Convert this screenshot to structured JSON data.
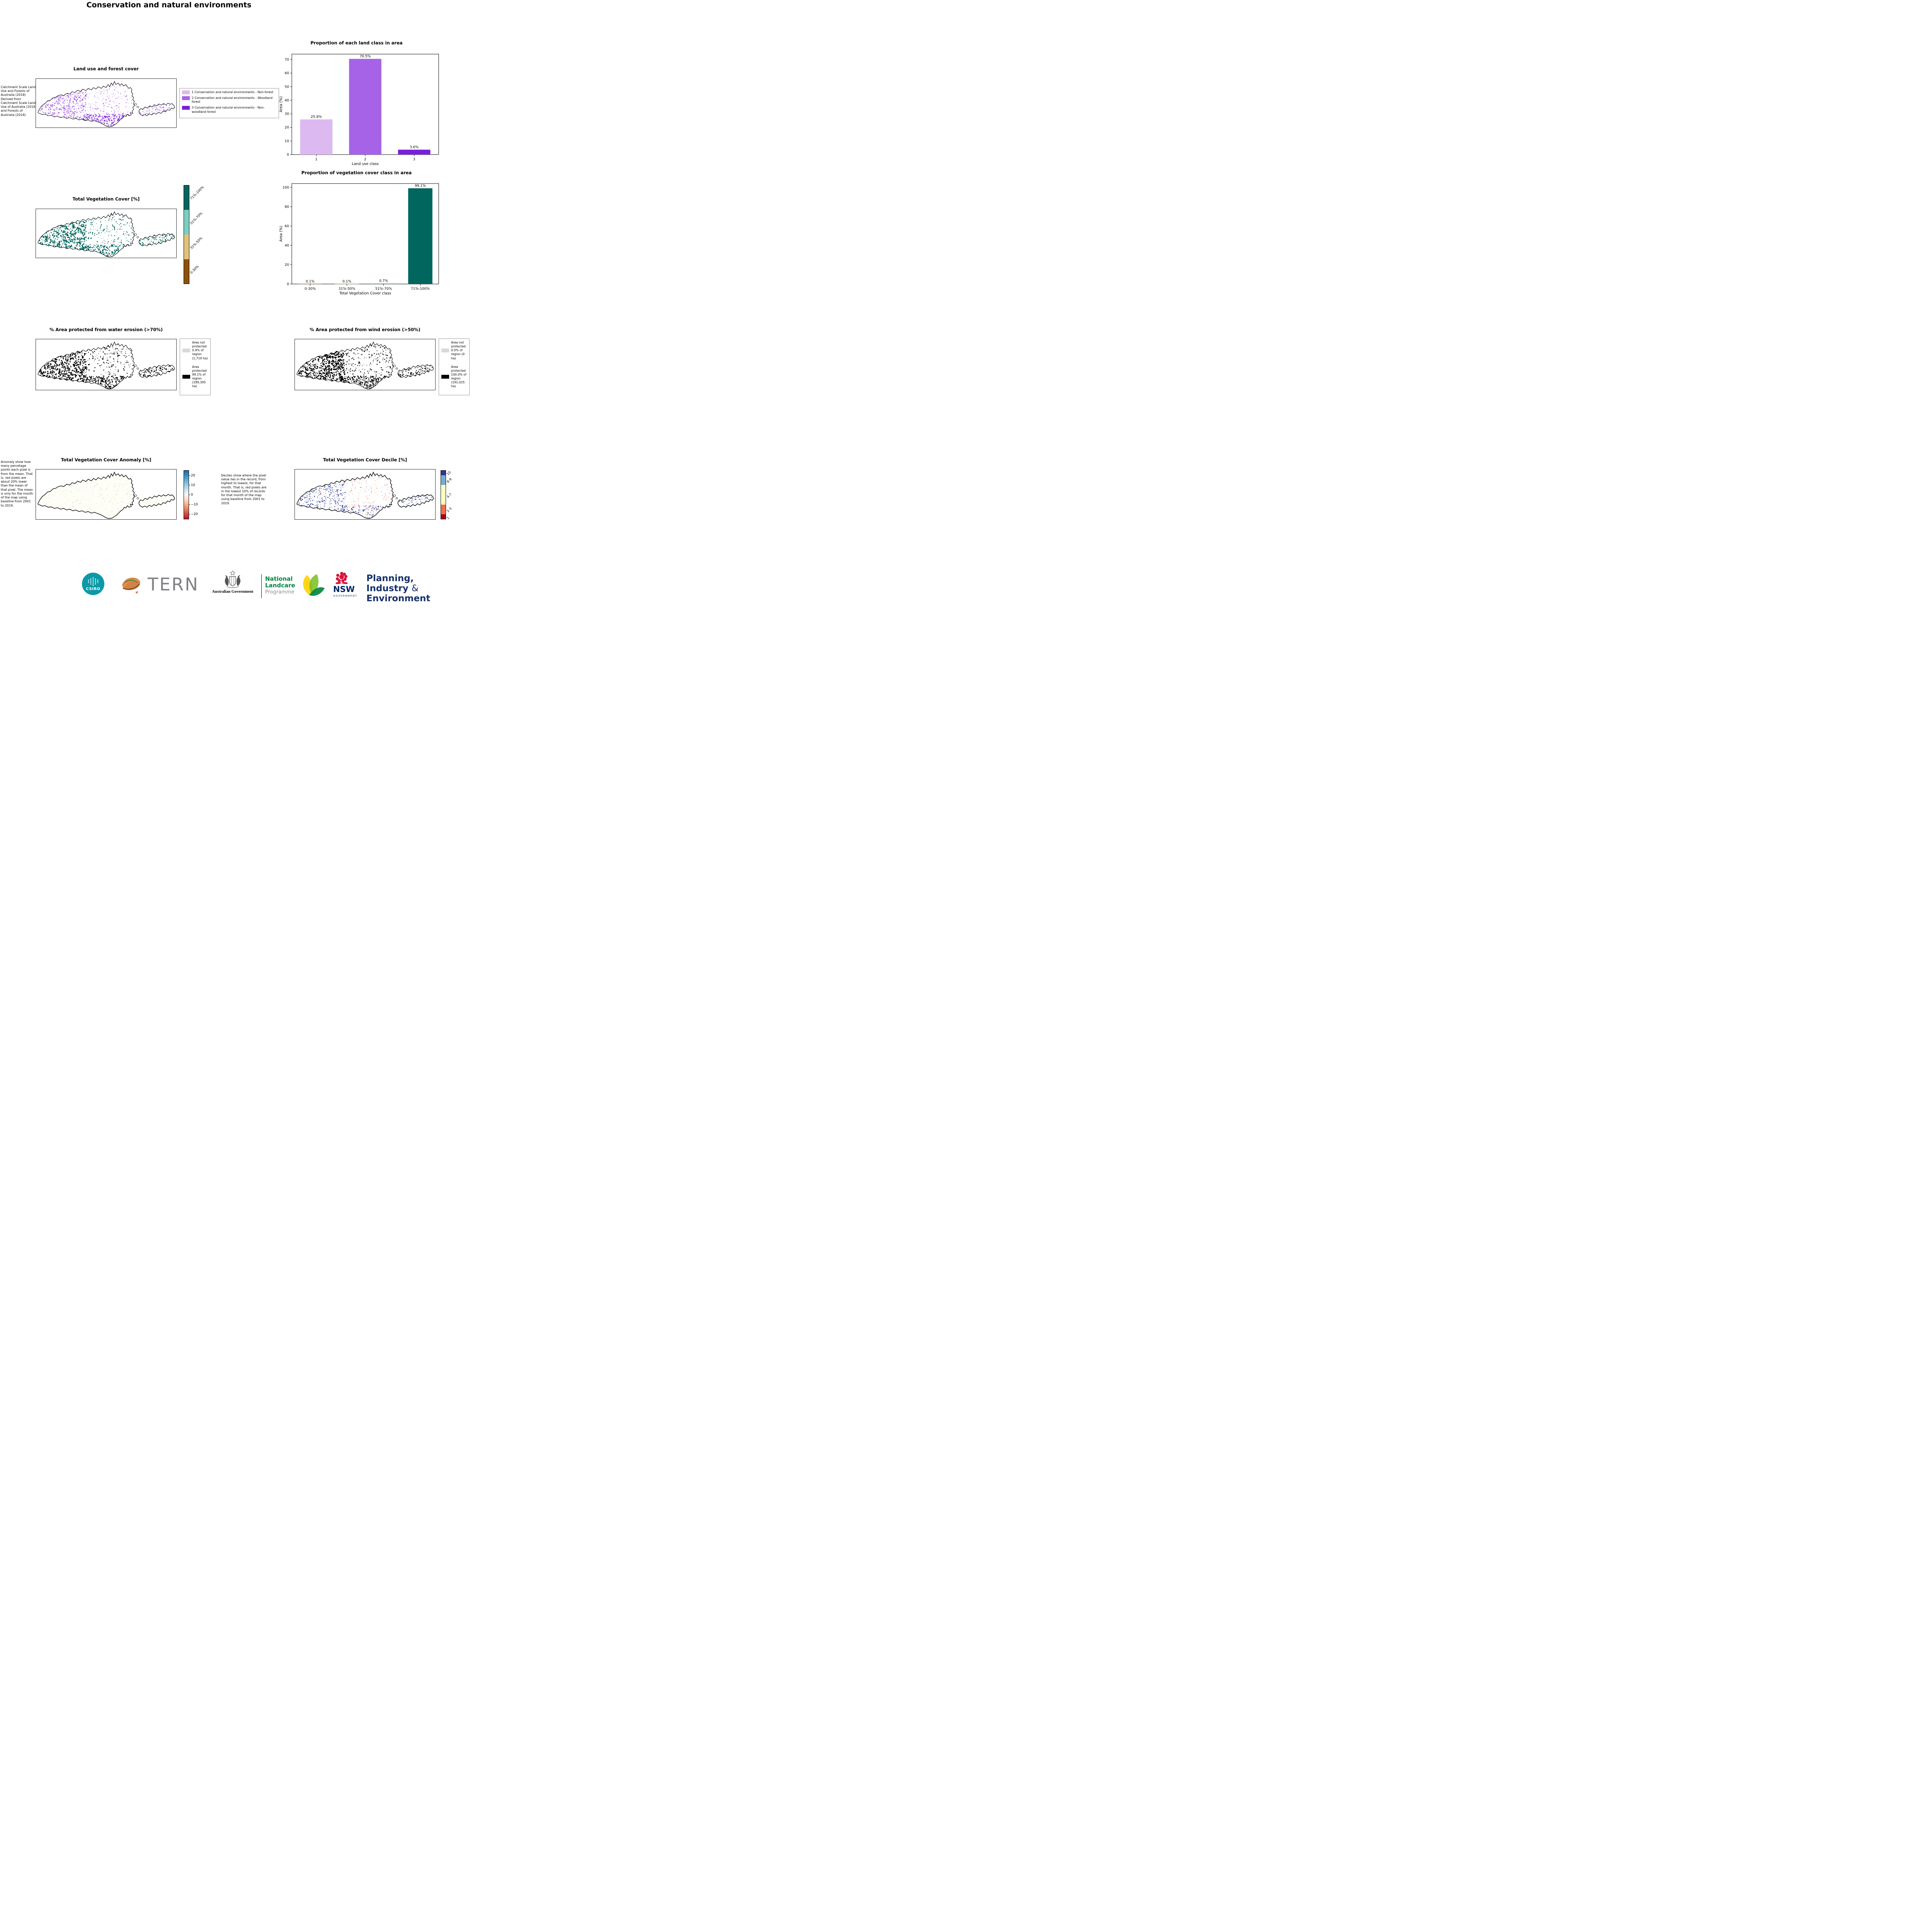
{
  "page": {
    "title": "Conservation and natural environments"
  },
  "land_use_map": {
    "title": "Land use and forest cover",
    "source_note": "Catchment Scale Land Use and Forests of Australia (2018) Derived from Catchment Scale Land Use of Australia (2018) and Forests of Australia (2018)",
    "legend": [
      {
        "label": "1 Conservation and natural environments - Non-forest",
        "color": "#ddb9f2"
      },
      {
        "label": "2 Conservation and natural environments - Woodland forest",
        "color": "#a763e8"
      },
      {
        "label": "3 Conservation and natural environments - Non-woodland forest",
        "color": "#7a1fd8"
      }
    ]
  },
  "chart_data": [
    {
      "type": "bar",
      "title": "Proportion of each land class in area",
      "categories": [
        "1",
        "2",
        "3"
      ],
      "values": [
        25.9,
        70.5,
        3.6
      ],
      "bar_labels": [
        "25.9%",
        "70.5%",
        "3.6%"
      ],
      "colors": [
        "#ddb9f2",
        "#a763e8",
        "#7a1fd8"
      ],
      "xlabel": "Land use class",
      "ylabel": "Area (%)",
      "ylim": [
        0,
        74
      ],
      "yticks": [
        0,
        10,
        20,
        30,
        40,
        50,
        60,
        70
      ],
      "legend_position": "none",
      "grid": false
    },
    {
      "type": "bar",
      "title": "Proportion of vegetation cover class in area",
      "categories": [
        "0-30%",
        "31%-50%",
        "51%-70%",
        "71%-100%"
      ],
      "values": [
        0.1,
        0.1,
        0.7,
        99.1
      ],
      "bar_labels": [
        "0.1%",
        "0.1%",
        "0.7%",
        "99.1%"
      ],
      "colors": [
        "#8c510a",
        "#dfc27d",
        "#80cdc1",
        "#01665e"
      ],
      "xlabel": "Total Vegetation Cover class",
      "ylabel": "Area (%)",
      "ylim": [
        0,
        104
      ],
      "yticks": [
        0,
        20,
        40,
        60,
        80,
        100
      ],
      "legend_position": "none",
      "grid": false
    }
  ],
  "veg_cover_map": {
    "title": "Total Vegetation Cover [%]",
    "colorbar": [
      {
        "label": "71%-100%",
        "color": "#01665e"
      },
      {
        "label": "51%-70%",
        "color": "#80cdc1"
      },
      {
        "label": "31%-50%",
        "color": "#dfc27d"
      },
      {
        "label": "0-30%",
        "color": "#8c510a"
      }
    ]
  },
  "water_erosion_map": {
    "title": "% Area protected from water erosion (>70%)",
    "legend": [
      {
        "label": "Area not protected 0.9% of region (1,719 ha)",
        "color": "#d9d9d9"
      },
      {
        "label": "Area protected 99.1% of region (189,305 ha)",
        "color": "#000000"
      }
    ]
  },
  "wind_erosion_map": {
    "title": "% Area protected from wind erosion (>50%)",
    "legend": [
      {
        "label": "Area not protected 0.0% of region (0 ha)",
        "color": "#d9d9d9"
      },
      {
        "label": "Area protected 100.0% of region (191,025 ha)",
        "color": "#000000"
      }
    ]
  },
  "anomaly_map": {
    "title": "Total Vegetation Cover Anomaly [%]",
    "note": "Anomaly show how many percetage points each pixel is from the mean. That is, red pixels are about 20% lower than the mean of that pixel. The mean is only for the month of the map using baseline from 2001 to 2019.",
    "colorbar_range": [
      -25,
      25
    ],
    "colorbar_ticks": [
      {
        "label": "20",
        "v": 20
      },
      {
        "label": "10",
        "v": 10
      },
      {
        "label": "0",
        "v": 0
      },
      {
        "label": "−10",
        "v": -10
      },
      {
        "label": "−20",
        "v": -20
      }
    ]
  },
  "decile_map": {
    "title": "Total Vegetation Cover Decile [%]",
    "note": "Deciles show where the pixel value lies in the record, from highest to lowest, for that month. That is, red pixels are in the lowest 10% of records for that month of the map using baseline from 2001 to 2019.",
    "colorbar": [
      {
        "label": "10",
        "color": "#313695",
        "size": 1
      },
      {
        "label": "8-9",
        "color": "#74add1",
        "size": 2
      },
      {
        "label": "4-7",
        "color": "#ffffbf",
        "size": 4
      },
      {
        "label": "2-3",
        "color": "#f46d43",
        "size": 2
      },
      {
        "label": "1",
        "color": "#a50026",
        "size": 1
      }
    ]
  },
  "footer": {
    "csiro_label": "CSIRO",
    "tern_label": "TERN",
    "aus_gov_label": "Australian Government",
    "landcare_line1": "National",
    "landcare_line2": "Landcare",
    "landcare_line3": "Programme",
    "nsw_label": "NSW",
    "nsw_sub_label": "GOVERNMENT",
    "dpie_line1": "Planning,",
    "dpie_line2": "Industry",
    "dpie_amp": "&",
    "dpie_line3": "Environment",
    "brand_colors": {
      "csiro_teal": "#0b99a8",
      "landcare_green": "#00843d",
      "nsw_red": "#d7153a",
      "nsw_navy": "#002664"
    }
  }
}
